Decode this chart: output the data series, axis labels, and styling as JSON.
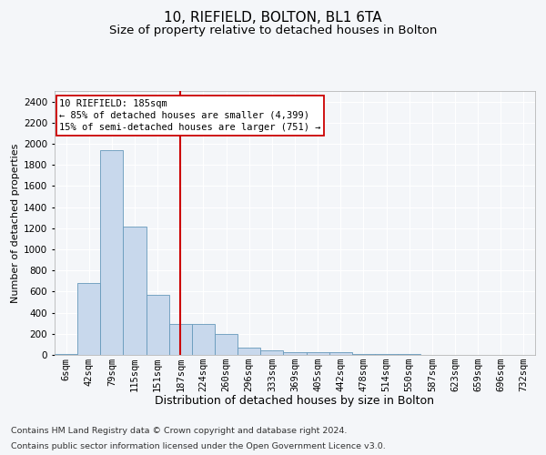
{
  "title": "10, RIEFIELD, BOLTON, BL1 6TA",
  "subtitle": "Size of property relative to detached houses in Bolton",
  "xlabel": "Distribution of detached houses by size in Bolton",
  "ylabel": "Number of detached properties",
  "footer_line1": "Contains HM Land Registry data © Crown copyright and database right 2024.",
  "footer_line2": "Contains public sector information licensed under the Open Government Licence v3.0.",
  "annotation_line1": "10 RIEFIELD: 185sqm",
  "annotation_line2": "← 85% of detached houses are smaller (4,399)",
  "annotation_line3": "15% of semi-detached houses are larger (751) →",
  "bar_color": "#c8d8ec",
  "bar_edge_color": "#6699bb",
  "vline_color": "#cc0000",
  "vline_x": 5,
  "annotation_box_edge_color": "#cc0000",
  "categories": [
    "6sqm",
    "42sqm",
    "79sqm",
    "115sqm",
    "151sqm",
    "187sqm",
    "224sqm",
    "260sqm",
    "296sqm",
    "333sqm",
    "369sqm",
    "405sqm",
    "442sqm",
    "478sqm",
    "514sqm",
    "550sqm",
    "587sqm",
    "623sqm",
    "659sqm",
    "696sqm",
    "732sqm"
  ],
  "values": [
    5,
    680,
    1940,
    1215,
    570,
    295,
    295,
    195,
    70,
    40,
    30,
    25,
    25,
    8,
    8,
    5,
    2,
    1,
    1,
    0,
    0
  ],
  "ylim": [
    0,
    2500
  ],
  "yticks": [
    0,
    200,
    400,
    600,
    800,
    1000,
    1200,
    1400,
    1600,
    1800,
    2000,
    2200,
    2400
  ],
  "background_color": "#f4f6f9",
  "plot_bg_color": "#f4f6f9",
  "title_fontsize": 11,
  "subtitle_fontsize": 9.5,
  "xlabel_fontsize": 9,
  "ylabel_fontsize": 8,
  "tick_fontsize": 7.5,
  "annotation_fontsize": 7.5,
  "footer_fontsize": 6.8
}
